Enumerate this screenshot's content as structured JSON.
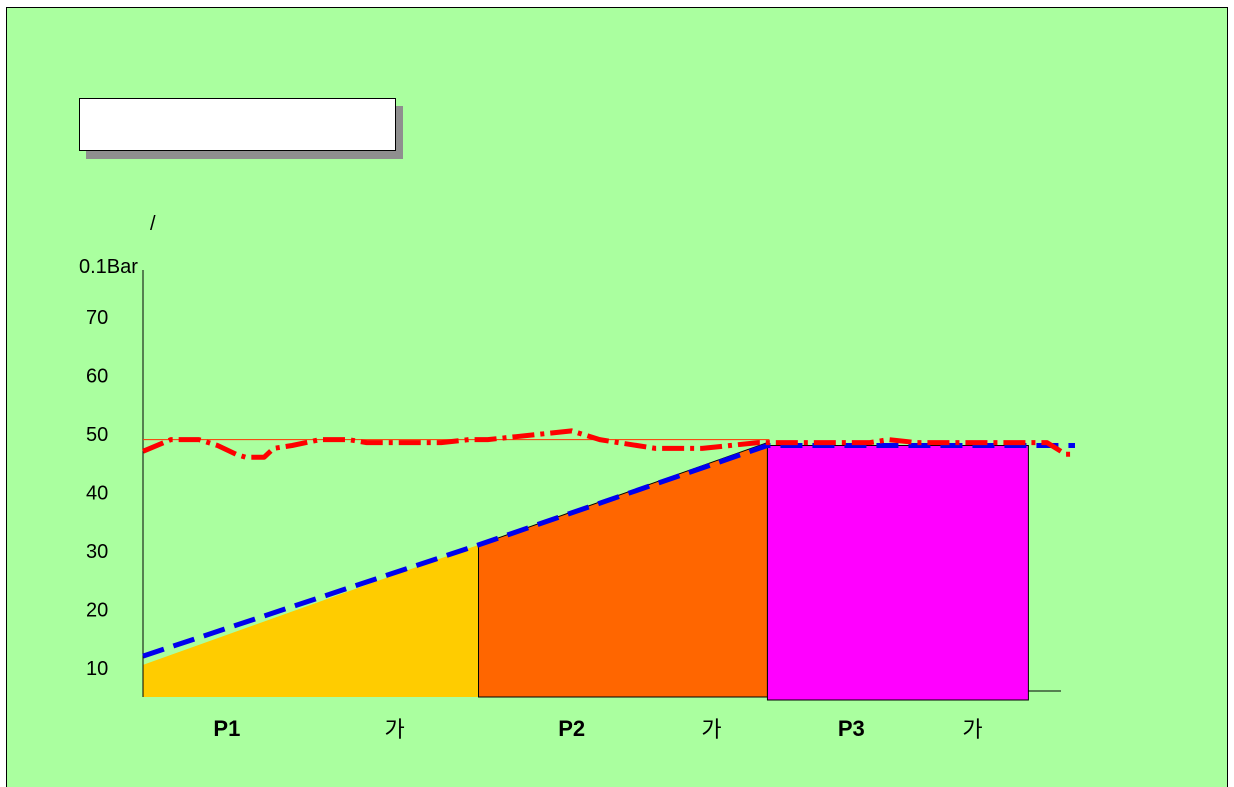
{
  "title_box": {
    "text": ""
  },
  "chart_data": {
    "type": "area",
    "title": "",
    "ylabel_lines": [
      "/",
      "0.1Bar"
    ],
    "y_ticks": [
      10,
      20,
      30,
      40,
      50,
      60,
      70
    ],
    "ylim": [
      5,
      78
    ],
    "xlim": [
      0,
      100
    ],
    "reference_level": 49,
    "phases": [
      {
        "label": "P1",
        "suffix": "가",
        "color": "#ffcc00",
        "x_start": 0,
        "x_end": 36,
        "y_start": 10.5,
        "y_end": 31,
        "label_x": 9,
        "suffix_x": 27
      },
      {
        "label": "P2",
        "suffix": "가",
        "color": "#ff6600",
        "x_start": 36,
        "x_end": 67,
        "y_start": 31,
        "y_end": 48.5,
        "label_x": 46,
        "suffix_x": 61
      },
      {
        "label": "P3",
        "suffix": "가",
        "color": "#ff00ff",
        "x_start": 67,
        "x_end": 95,
        "y_start": 48,
        "y_end": 48,
        "label_x": 76,
        "suffix_x": 89
      }
    ],
    "series": [
      {
        "style": "dashed",
        "color": "#0000ee",
        "x": [
          0,
          36,
          67,
          100
        ],
        "y": [
          12,
          31,
          48,
          48
        ]
      },
      {
        "style": "dashed",
        "color": "#ff0000",
        "x": [
          0,
          3,
          6,
          8,
          10,
          11,
          13,
          14,
          16,
          19,
          22,
          24,
          27,
          30,
          32,
          35,
          37,
          40,
          43,
          46,
          49,
          51,
          55,
          57,
          60,
          63,
          66,
          70,
          74,
          78,
          80,
          83,
          85,
          88,
          91,
          94,
          97,
          99,
          100
        ],
        "y": [
          47,
          49,
          49,
          48,
          46.5,
          46,
          46,
          47.5,
          48,
          49,
          49,
          48.5,
          48.5,
          48.5,
          48.5,
          49,
          49,
          49.5,
          50,
          50.5,
          49,
          48.5,
          47.5,
          47.5,
          47.5,
          48,
          48.5,
          48.5,
          48.5,
          48.5,
          49,
          48.5,
          48.5,
          48.5,
          48.5,
          48.5,
          48.5,
          46.5,
          46.5
        ]
      }
    ]
  }
}
